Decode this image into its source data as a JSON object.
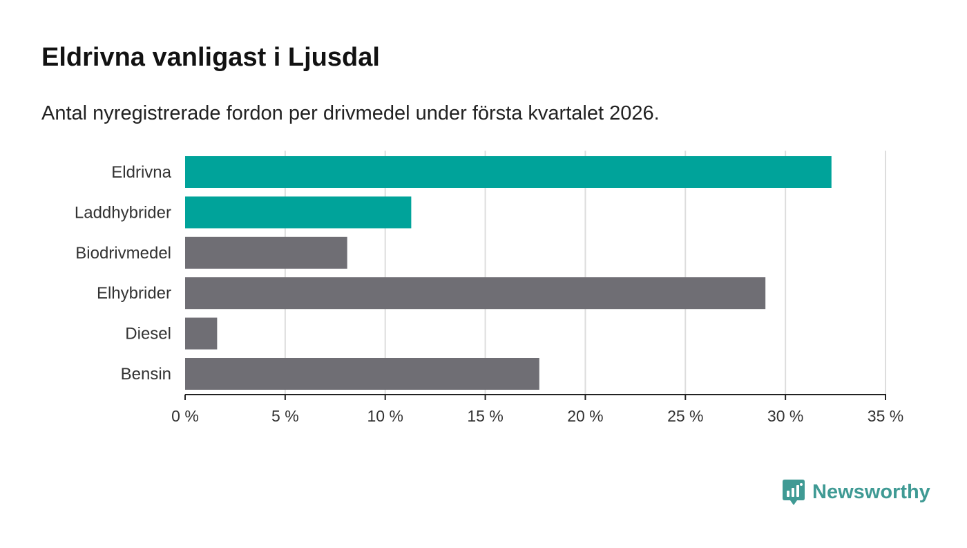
{
  "header": {
    "title": "Eldrivna vanligast i Ljusdal",
    "subtitle": "Antal nyregistrerade fordon per drivmedel under första kvartalet 2026."
  },
  "brand": {
    "name": "Newsworthy",
    "color": "#3f9a94"
  },
  "colors": {
    "highlight": "#00a39a",
    "default": "#6f6e74",
    "grid": "#dddddd",
    "axis": "#222222"
  },
  "chart_data": {
    "type": "bar",
    "orientation": "horizontal",
    "categories": [
      "Eldrivna",
      "Laddhybrider",
      "Biodrivmedel",
      "Elhybrider",
      "Diesel",
      "Bensin"
    ],
    "values": [
      32.3,
      11.3,
      8.1,
      29.0,
      1.6,
      17.7
    ],
    "highlighted": [
      true,
      true,
      false,
      false,
      false,
      false
    ],
    "unit": "%",
    "xlim": [
      0,
      35
    ],
    "ticks": [
      0,
      5,
      10,
      15,
      20,
      25,
      30,
      35
    ],
    "tick_labels": [
      "0 %",
      "5 %",
      "10 %",
      "15 %",
      "20 %",
      "25 %",
      "30 %",
      "35 %"
    ],
    "grid": true,
    "title": "Eldrivna vanligast i Ljusdal",
    "subtitle": "Antal nyregistrerade fordon per drivmedel under första kvartalet 2026.",
    "xlabel": "",
    "ylabel": ""
  }
}
